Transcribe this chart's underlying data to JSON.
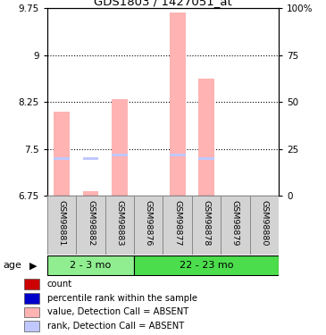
{
  "title": "GDS1803 / 1427051_at",
  "samples": [
    "GSM98881",
    "GSM98882",
    "GSM98883",
    "GSM98876",
    "GSM98877",
    "GSM98878",
    "GSM98879",
    "GSM98880"
  ],
  "groups": [
    {
      "label": "2 - 3 mo",
      "n": 3,
      "color": "#90ee90"
    },
    {
      "label": "22 - 23 mo",
      "n": 5,
      "color": "#4cdd4c"
    }
  ],
  "ylim_left": [
    6.75,
    9.75
  ],
  "ylim_right": [
    0,
    100
  ],
  "yticks_left": [
    6.75,
    7.5,
    8.25,
    9.0,
    9.75
  ],
  "yticks_right": [
    0,
    25,
    50,
    75,
    100
  ],
  "ytick_labels_left": [
    "6.75",
    "7.5",
    "8.25",
    "9",
    "9.75"
  ],
  "ytick_labels_right": [
    "0",
    "25",
    "50",
    "75",
    "100%"
  ],
  "gridlines_at": [
    7.5,
    8.25,
    9.0
  ],
  "bar_values": [
    8.1,
    6.82,
    8.3,
    6.75,
    9.68,
    8.63,
    6.75,
    6.75
  ],
  "rank_values": [
    20,
    20,
    22,
    0,
    22,
    20,
    0,
    0
  ],
  "bar_color_absent": "#ffb3b3",
  "rank_color_absent": "#c0c8ff",
  "legend_items": [
    {
      "color": "#cc0000",
      "marker": "s",
      "label": "count"
    },
    {
      "color": "#0000cc",
      "marker": "s",
      "label": "percentile rank within the sample"
    },
    {
      "color": "#ffb3b3",
      "marker": "s",
      "label": "value, Detection Call = ABSENT"
    },
    {
      "color": "#c0c8ff",
      "marker": "s",
      "label": "rank, Detection Call = ABSENT"
    }
  ],
  "left_tick_color": "#cc0000",
  "right_tick_color": "#0000bb",
  "bar_bottom": 6.75,
  "sample_bg_color": "#d3d3d3",
  "sample_border_color": "#888888"
}
